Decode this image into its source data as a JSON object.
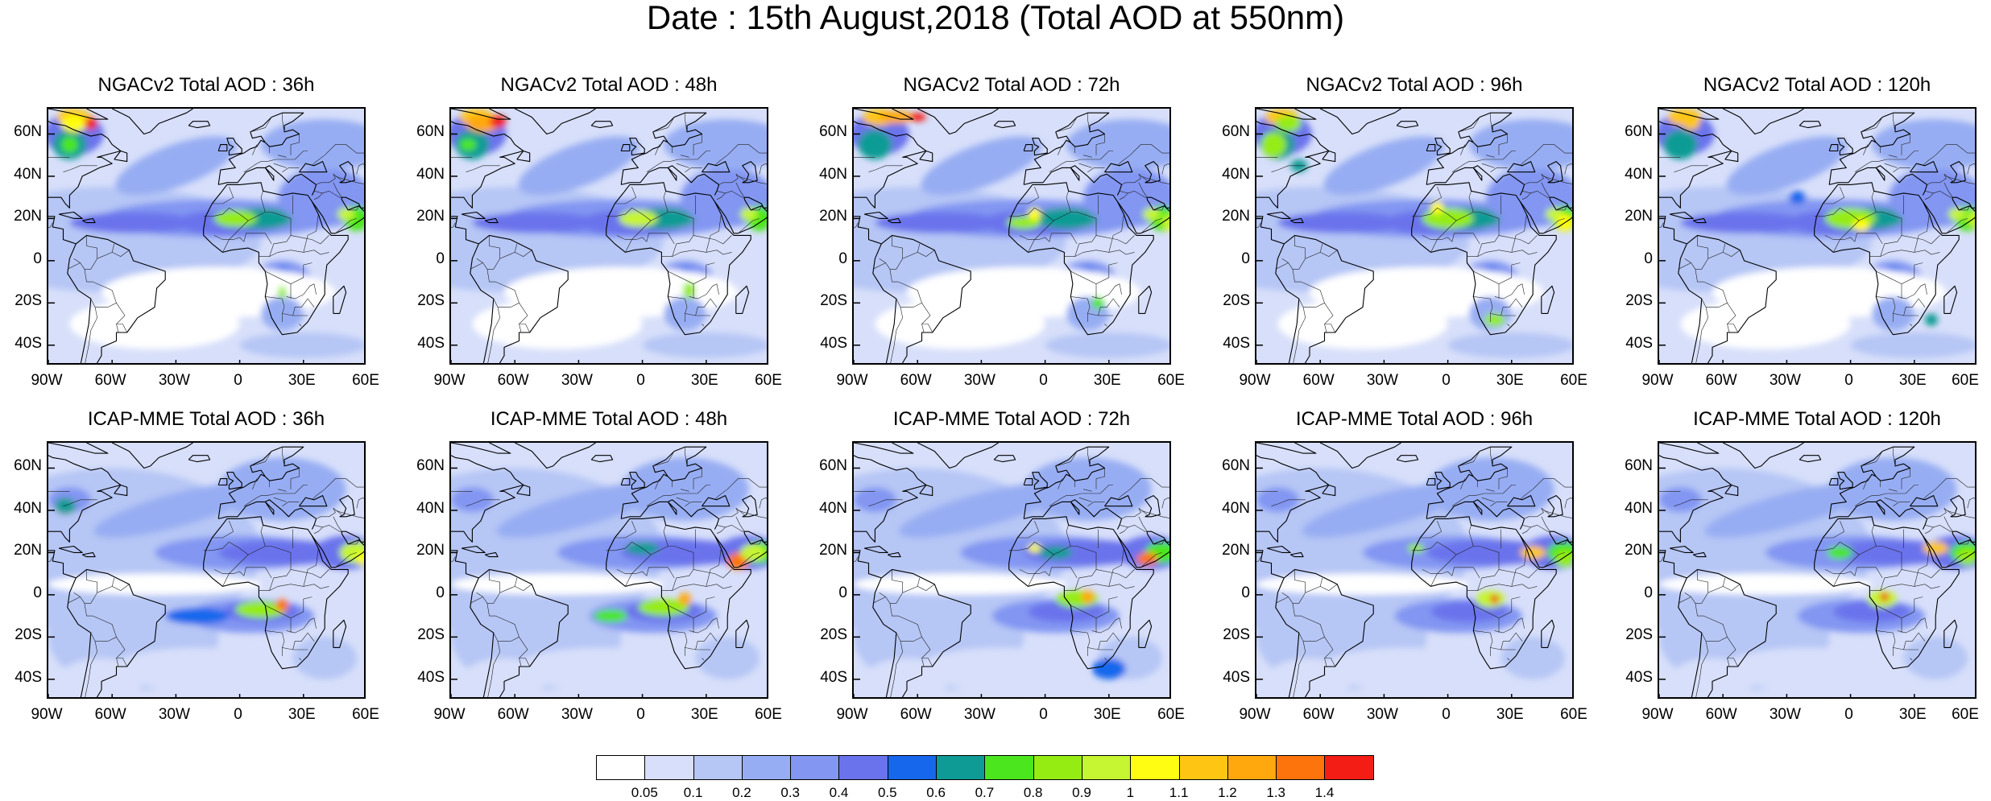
{
  "title": "Date : 15th August,2018 (Total AOD at 550nm)",
  "panels": [
    {
      "title": "NGACv2 Total AOD : 36h",
      "model": "NGACv2",
      "forecast_hour": "36h"
    },
    {
      "title": "NGACv2 Total AOD : 48h",
      "model": "NGACv2",
      "forecast_hour": "48h"
    },
    {
      "title": "NGACv2 Total AOD : 72h",
      "model": "NGACv2",
      "forecast_hour": "72h"
    },
    {
      "title": "NGACv2 Total AOD : 96h",
      "model": "NGACv2",
      "forecast_hour": "96h"
    },
    {
      "title": "NGACv2 Total AOD : 120h",
      "model": "NGACv2",
      "forecast_hour": "120h"
    },
    {
      "title": "ICAP-MME Total AOD : 36h",
      "model": "ICAP-MME",
      "forecast_hour": "36h"
    },
    {
      "title": "ICAP-MME Total AOD : 48h",
      "model": "ICAP-MME",
      "forecast_hour": "48h"
    },
    {
      "title": "ICAP-MME Total AOD : 72h",
      "model": "ICAP-MME",
      "forecast_hour": "72h"
    },
    {
      "title": "ICAP-MME Total AOD : 96h",
      "model": "ICAP-MME",
      "forecast_hour": "96h"
    },
    {
      "title": "ICAP-MME Total AOD : 120h",
      "model": "ICAP-MME",
      "forecast_hour": "120h"
    }
  ],
  "lat_labels": [
    "60N",
    "40N",
    "20N",
    "0",
    "20S",
    "40S"
  ],
  "lon_labels": [
    "90W",
    "60W",
    "30W",
    "0",
    "30E",
    "60E"
  ],
  "map_extent": {
    "lon_range": [
      -90,
      60
    ],
    "lat_range": [
      -50,
      72
    ]
  },
  "colorbar": {
    "labels": [
      "0.05",
      "0.1",
      "0.2",
      "0.3",
      "0.4",
      "0.5",
      "0.6",
      "0.7",
      "0.8",
      "0.9",
      "1",
      "1.1",
      "1.2",
      "1.3",
      "1.4"
    ],
    "colors": [
      "#ffffff",
      "#d7dffa",
      "#b6c6f5",
      "#97adf3",
      "#8296f2",
      "#6a73ec",
      "#1667ec",
      "#0f9b95",
      "#4ce61e",
      "#95ec12",
      "#c6f531",
      "#fffd11",
      "#fec612",
      "#ffa80e",
      "#fd740c",
      "#f31d16"
    ]
  }
}
